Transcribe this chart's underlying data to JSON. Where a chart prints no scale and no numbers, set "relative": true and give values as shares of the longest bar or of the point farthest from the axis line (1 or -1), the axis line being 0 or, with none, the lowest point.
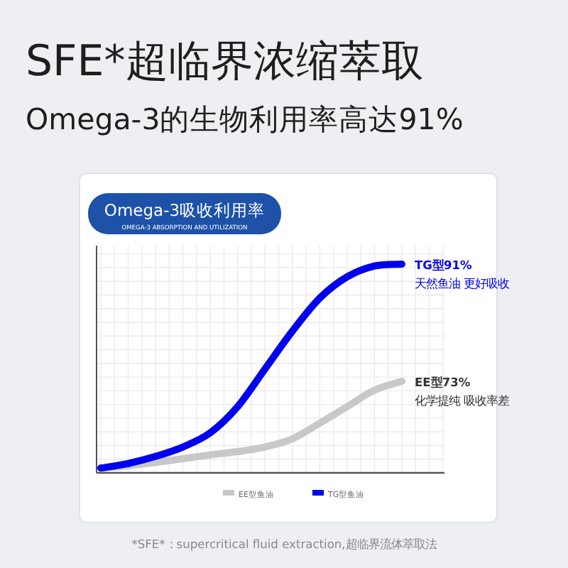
{
  "chart_data": {
    "type": "line",
    "title": "SFE*超临界浓缩萃取",
    "subtitle": "Omega-3的生物利用率高达91%",
    "relative": true,
    "grid": true,
    "legend": "bottom",
    "marker": "none",
    "line_style": "solid",
    "categories": [
      null,
      null,
      null,
      null,
      null,
      null,
      null,
      null,
      null,
      null,
      null,
      null
    ],
    "series": [
      {
        "name": "EE型鱼油",
        "color": "#c8c8c8",
        "values": [
          0.023,
          0.034,
          0.05,
          0.068,
          0.086,
          0.102,
          0.124,
          0.163,
          0.238,
          0.317,
          0.396,
          0.439
        ]
      },
      {
        "name": "TG型鱼油",
        "color": "#0000ee",
        "values": [
          0.023,
          0.045,
          0.079,
          0.124,
          0.192,
          0.317,
          0.498,
          0.679,
          0.837,
          0.939,
          0.991,
          1
        ]
      }
    ],
    "annotations": [
      "Omega-3吸收利用率",
      "OMEGA-3 ABSORPTION AND UTILIZATION",
      "TG型91%",
      "天然鱼油 更好吸收",
      "EE型73%",
      "化学提纯 吸收率差",
      "*SFE*：supercritical fluid extraction,超临界流体萃取法"
    ]
  }
}
